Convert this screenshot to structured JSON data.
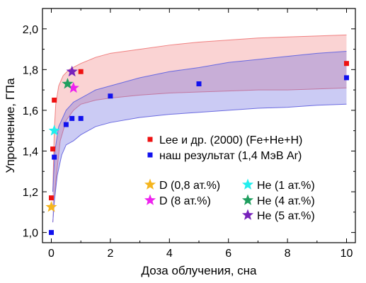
{
  "chart_data": {
    "type": "scatter",
    "xlabel": "Доза облучения, сна",
    "ylabel": "Упрочнение, ГПа",
    "xlim": [
      -0.3,
      10.3
    ],
    "ylim": [
      0.95,
      2.1
    ],
    "xticks": [
      0,
      2,
      4,
      6,
      8,
      10
    ],
    "xtick_labels": [
      "0",
      "2",
      "4",
      "6",
      "8",
      "10"
    ],
    "yticks": [
      1.0,
      1.2,
      1.4,
      1.6,
      1.8,
      2.0
    ],
    "ytick_labels": [
      "1,0",
      "1,2",
      "1,4",
      "1,6",
      "1,8",
      "2,0"
    ],
    "grid": false,
    "legend_position": "bottom-right",
    "bands": [
      {
        "color": "#f08080",
        "fill_opacity": 0.35,
        "upper": [
          [
            0.05,
            1.2
          ],
          [
            0.1,
            1.5
          ],
          [
            0.15,
            1.63
          ],
          [
            0.25,
            1.72
          ],
          [
            0.4,
            1.77
          ],
          [
            0.6,
            1.8
          ],
          [
            1,
            1.83
          ],
          [
            1.5,
            1.86
          ],
          [
            2,
            1.88
          ],
          [
            3,
            1.9
          ],
          [
            4,
            1.92
          ],
          [
            5,
            1.935
          ],
          [
            6,
            1.945
          ],
          [
            7,
            1.955
          ],
          [
            8,
            1.96
          ],
          [
            9,
            1.965
          ],
          [
            10,
            1.97
          ]
        ],
        "lower": [
          [
            0.05,
            1.05
          ],
          [
            0.15,
            1.25
          ],
          [
            0.3,
            1.45
          ],
          [
            0.5,
            1.55
          ],
          [
            0.75,
            1.6
          ],
          [
            1,
            1.63
          ],
          [
            1.5,
            1.65
          ],
          [
            2,
            1.66
          ],
          [
            3,
            1.675
          ],
          [
            4,
            1.685
          ],
          [
            5,
            1.69
          ],
          [
            6,
            1.695
          ],
          [
            7,
            1.7
          ],
          [
            8,
            1.7
          ],
          [
            9,
            1.705
          ],
          [
            10,
            1.71
          ]
        ]
      },
      {
        "color": "#6a6ae0",
        "fill_opacity": 0.35,
        "upper": [
          [
            0.05,
            1.2
          ],
          [
            0.12,
            1.4
          ],
          [
            0.25,
            1.52
          ],
          [
            0.5,
            1.6
          ],
          [
            0.75,
            1.64
          ],
          [
            1,
            1.66
          ],
          [
            1.5,
            1.7
          ],
          [
            2,
            1.72
          ],
          [
            3,
            1.76
          ],
          [
            4,
            1.79
          ],
          [
            5,
            1.81
          ],
          [
            6,
            1.835
          ],
          [
            7,
            1.85
          ],
          [
            8,
            1.865
          ],
          [
            9,
            1.88
          ],
          [
            10,
            1.89
          ]
        ],
        "lower": [
          [
            0.05,
            1.05
          ],
          [
            0.1,
            1.15
          ],
          [
            0.2,
            1.28
          ],
          [
            0.35,
            1.38
          ],
          [
            0.5,
            1.43
          ],
          [
            0.75,
            1.45
          ],
          [
            1,
            1.48
          ],
          [
            1.25,
            1.5
          ],
          [
            1.5,
            1.52
          ],
          [
            2,
            1.54
          ],
          [
            3,
            1.565
          ],
          [
            4,
            1.58
          ],
          [
            5,
            1.59
          ],
          [
            6,
            1.6
          ],
          [
            7,
            1.61
          ],
          [
            8,
            1.615
          ],
          [
            9,
            1.625
          ],
          [
            10,
            1.63
          ]
        ]
      }
    ],
    "series": [
      {
        "name": "Lee и др. (2000) (Fe+He+H)",
        "marker": "square",
        "color": "#ee1111",
        "points": [
          [
            0,
            1.17
          ],
          [
            0.05,
            1.41
          ],
          [
            0.1,
            1.65
          ],
          [
            1,
            1.79
          ],
          [
            10,
            1.83
          ]
        ]
      },
      {
        "name": "наш результат (1,4 МэВ Ar)",
        "marker": "square",
        "color": "#1111ee",
        "points": [
          [
            0,
            1.0
          ],
          [
            0.1,
            1.37
          ],
          [
            0.5,
            1.53
          ],
          [
            0.7,
            1.56
          ],
          [
            1,
            1.56
          ],
          [
            2,
            1.67
          ],
          [
            5,
            1.73
          ],
          [
            10,
            1.76
          ]
        ]
      },
      {
        "name": "D (0,8 ат.%)",
        "marker": "star",
        "color": "#f5b51e",
        "points": [
          [
            0,
            1.125
          ]
        ]
      },
      {
        "name": "D (8 ат.%)",
        "marker": "star",
        "color": "#ee22ee",
        "points": [
          [
            0.75,
            1.71
          ]
        ]
      },
      {
        "name": "He (1 ат.%)",
        "marker": "star",
        "color": "#22eeee",
        "points": [
          [
            0.1,
            1.5
          ]
        ]
      },
      {
        "name": "He (4 ат.%)",
        "marker": "star",
        "color": "#1f9e5e",
        "points": [
          [
            0.55,
            1.73
          ]
        ]
      },
      {
        "name": "He (5 ат.%)",
        "marker": "star",
        "color": "#7722bb",
        "points": [
          [
            0.7,
            1.79
          ]
        ]
      }
    ],
    "legend": [
      [
        "Lee и др. (2000) (Fe+He+H)"
      ],
      [
        "наш результат (1,4 МэВ Ar)"
      ],
      [
        "D (0,8 ат.%)",
        "He (1 ат.%)"
      ],
      [
        "D (8 ат.%)",
        "He (4 ат.%)"
      ],
      [
        "",
        "He (5 ат.%)"
      ]
    ]
  }
}
